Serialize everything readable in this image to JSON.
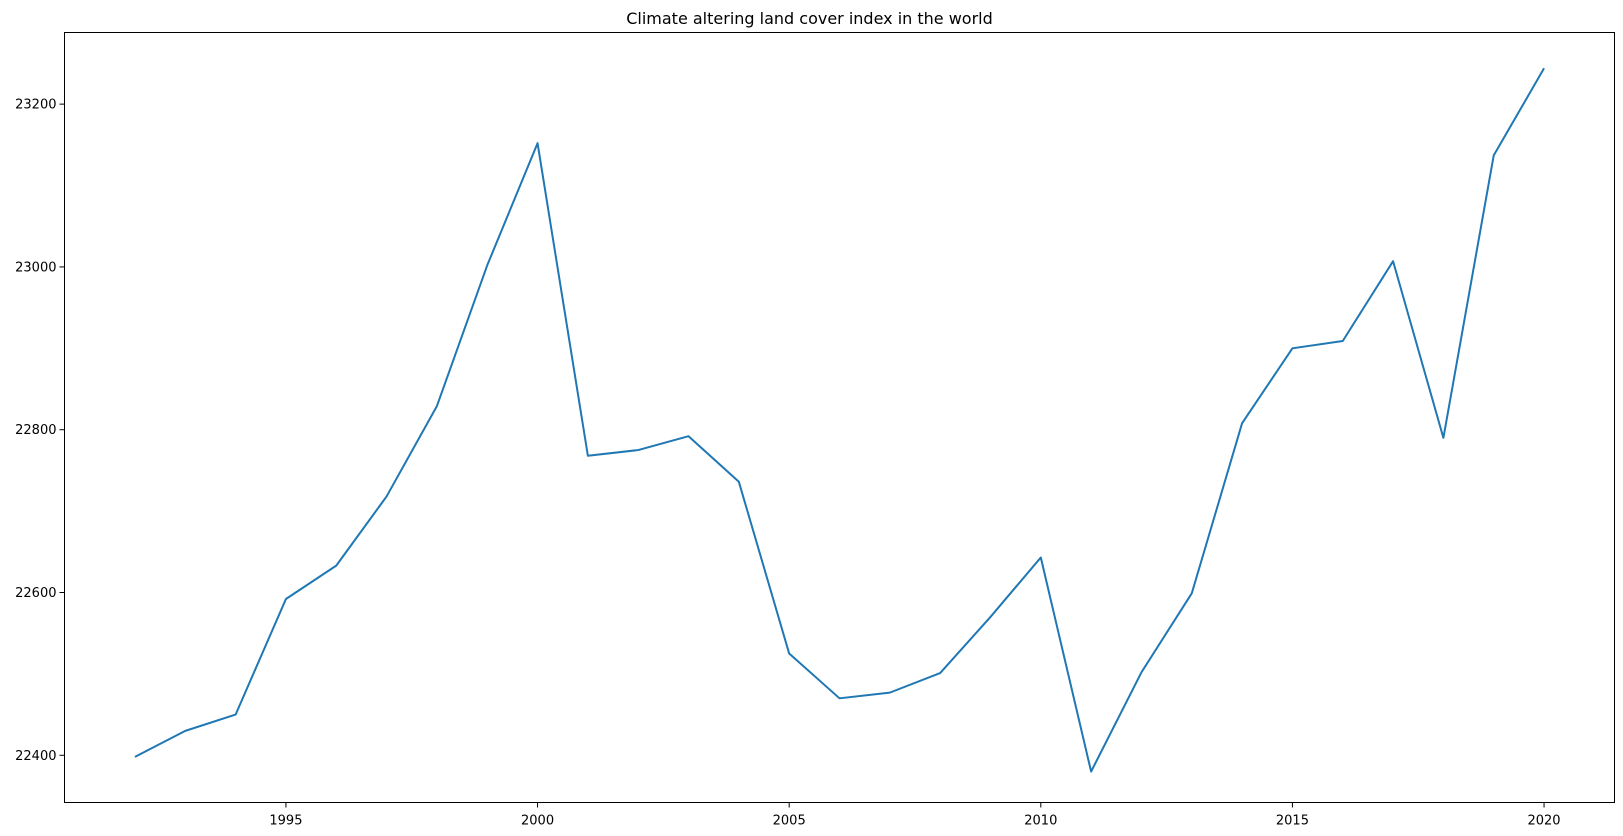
{
  "chart_data": {
    "type": "line",
    "title": "Climate altering land cover index in the world",
    "xlabel": "",
    "ylabel": "",
    "x": [
      1992,
      1993,
      1994,
      1995,
      1996,
      1997,
      1998,
      1999,
      2000,
      2001,
      2002,
      2003,
      2004,
      2005,
      2006,
      2007,
      2008,
      2009,
      2010,
      2011,
      2012,
      2013,
      2014,
      2015,
      2016,
      2017,
      2018,
      2019,
      2020
    ],
    "series": [
      {
        "color": "#1f77b4",
        "values": [
          22398,
          22430,
          22450,
          22592,
          22633,
          22718,
          22829,
          23002,
          23152,
          22768,
          22775,
          22792,
          22736,
          22525,
          22470,
          22477,
          22501,
          22570,
          22643,
          22380,
          22502,
          22599,
          22808,
          22900,
          22909,
          23007,
          22790,
          23137,
          23244
        ]
      }
    ],
    "xlim": [
      1990.6,
      2021.4
    ],
    "ylim": [
      22342,
      23288
    ],
    "xticks": [
      1995,
      2000,
      2005,
      2010,
      2015,
      2020
    ],
    "yticks": [
      22400,
      22600,
      22800,
      23000,
      23200
    ],
    "grid": false,
    "legend": "none"
  }
}
